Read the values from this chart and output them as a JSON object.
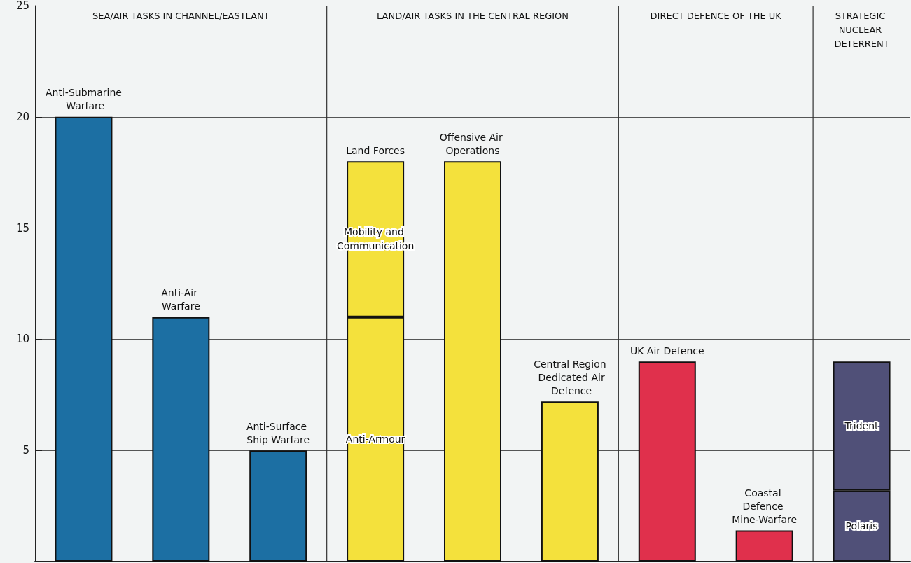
{
  "chart_data": {
    "type": "bar",
    "stacked": true,
    "categories": [
      "Anti-Submarine Warfare",
      "Anti-Air Warfare",
      "Anti-Surface Ship Warfare",
      "Land Forces",
      "Offensive Air Operations",
      "Central Region Dedicated Air Defence",
      "UK Air Defence",
      "Coastal Defence Mine-Warfare",
      null
    ],
    "series": [
      {
        "values": [
          20,
          11,
          5,
          11,
          18,
          7.2,
          9,
          1.4,
          3.2
        ],
        "colors": [
          "#1c6fa3",
          "#1c6fa3",
          "#1c6fa3",
          "#f4e13c",
          "#f4e13c",
          "#f4e13c",
          "#e0304c",
          "#e0304c",
          "#505078"
        ],
        "value_labels": [
          null,
          null,
          null,
          "Anti-Armour",
          null,
          null,
          null,
          null,
          "Polaris"
        ]
      },
      {
        "values": [
          null,
          null,
          null,
          7,
          null,
          null,
          null,
          null,
          5.8
        ],
        "colors": [
          null,
          null,
          null,
          "#f4e13c",
          null,
          null,
          null,
          null,
          "#505078"
        ],
        "value_labels": [
          null,
          null,
          null,
          "Mobility and Communication",
          null,
          null,
          null,
          null,
          "Trident"
        ]
      }
    ],
    "ylim": [
      0,
      25
    ],
    "yticks": [
      5,
      10,
      15,
      20,
      25
    ],
    "grid": "y",
    "tick_labels": "y",
    "annotations": [
      "SEA/AIR TASKS IN CHANNEL/EASTLANT",
      "LAND/AIR TASKS IN THE CENTRAL REGION",
      "DIRECT DEFENCE OF THE UK",
      "STRATEGIC NUCLEAR DETERRENT"
    ]
  }
}
